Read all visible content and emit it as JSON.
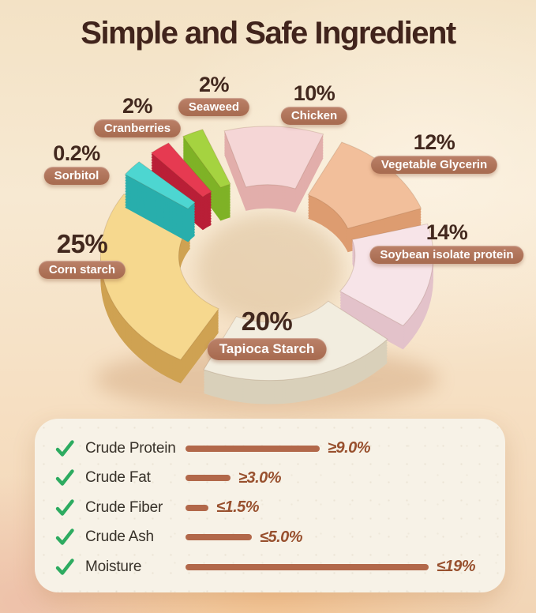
{
  "title": "Simple and Safe Ingredient",
  "chart_data": {
    "type": "pie",
    "title": "Simple and Safe Ingredient",
    "unit": "%",
    "legend_position": "around-slices",
    "slices": [
      {
        "name": "Chicken",
        "pct": 10,
        "pct_label": "10%",
        "color_top": "#f5d6d6",
        "color_side": "#e2aeab"
      },
      {
        "name": "Vegetable Glycerin",
        "pct": 12,
        "pct_label": "12%",
        "color_top": "#f2bf9b",
        "color_side": "#dd9c70"
      },
      {
        "name": "Soybean isolate protein",
        "pct": 14,
        "pct_label": "14%",
        "color_top": "#f7e4e8",
        "color_side": "#e3c2ca"
      },
      {
        "name": "Tapioca Starch",
        "pct": 20,
        "pct_label": "20%",
        "color_top": "#f2eddf",
        "color_side": "#d9d0ba"
      },
      {
        "name": "Corn starch",
        "pct": 25,
        "pct_label": "25%",
        "color_top": "#f6d88e",
        "color_side": "#cfa252"
      },
      {
        "name": "Sorbitol",
        "pct": 0.2,
        "pct_label": "0.2%",
        "color_top": "#4dd6d1",
        "color_side": "#28aeac"
      },
      {
        "name": "Cranberries",
        "pct": 2,
        "pct_label": "2%",
        "color_top": "#e63a51",
        "color_side": "#b91f37"
      },
      {
        "name": "Seaweed",
        "pct": 2,
        "pct_label": "2%",
        "color_top": "#a5d340",
        "color_side": "#7fb226"
      }
    ]
  },
  "analysis": {
    "rows": [
      {
        "label": "Crude Protein",
        "value_label": "≥9.0%",
        "value": 9.0,
        "bar_len": 170
      },
      {
        "label": "Crude Fat",
        "value_label": "≥3.0%",
        "value": 3.0,
        "bar_len": 57
      },
      {
        "label": "Crude Fiber",
        "value_label": "≤1.5%",
        "value": 1.5,
        "bar_len": 29
      },
      {
        "label": "Crude Ash",
        "value_label": "≤5.0%",
        "value": 5.0,
        "bar_len": 84
      },
      {
        "label": "Moisture",
        "value_label": "≤19%",
        "value": 19.0,
        "bar_len": 308
      }
    ]
  },
  "colors": {
    "title": "#41241c",
    "pill_bg": "#a96d52",
    "bar": "#b2684a",
    "check": "#2dab60",
    "background_top": "#f3e2c5",
    "background_bottom": "#f2d5b6"
  }
}
